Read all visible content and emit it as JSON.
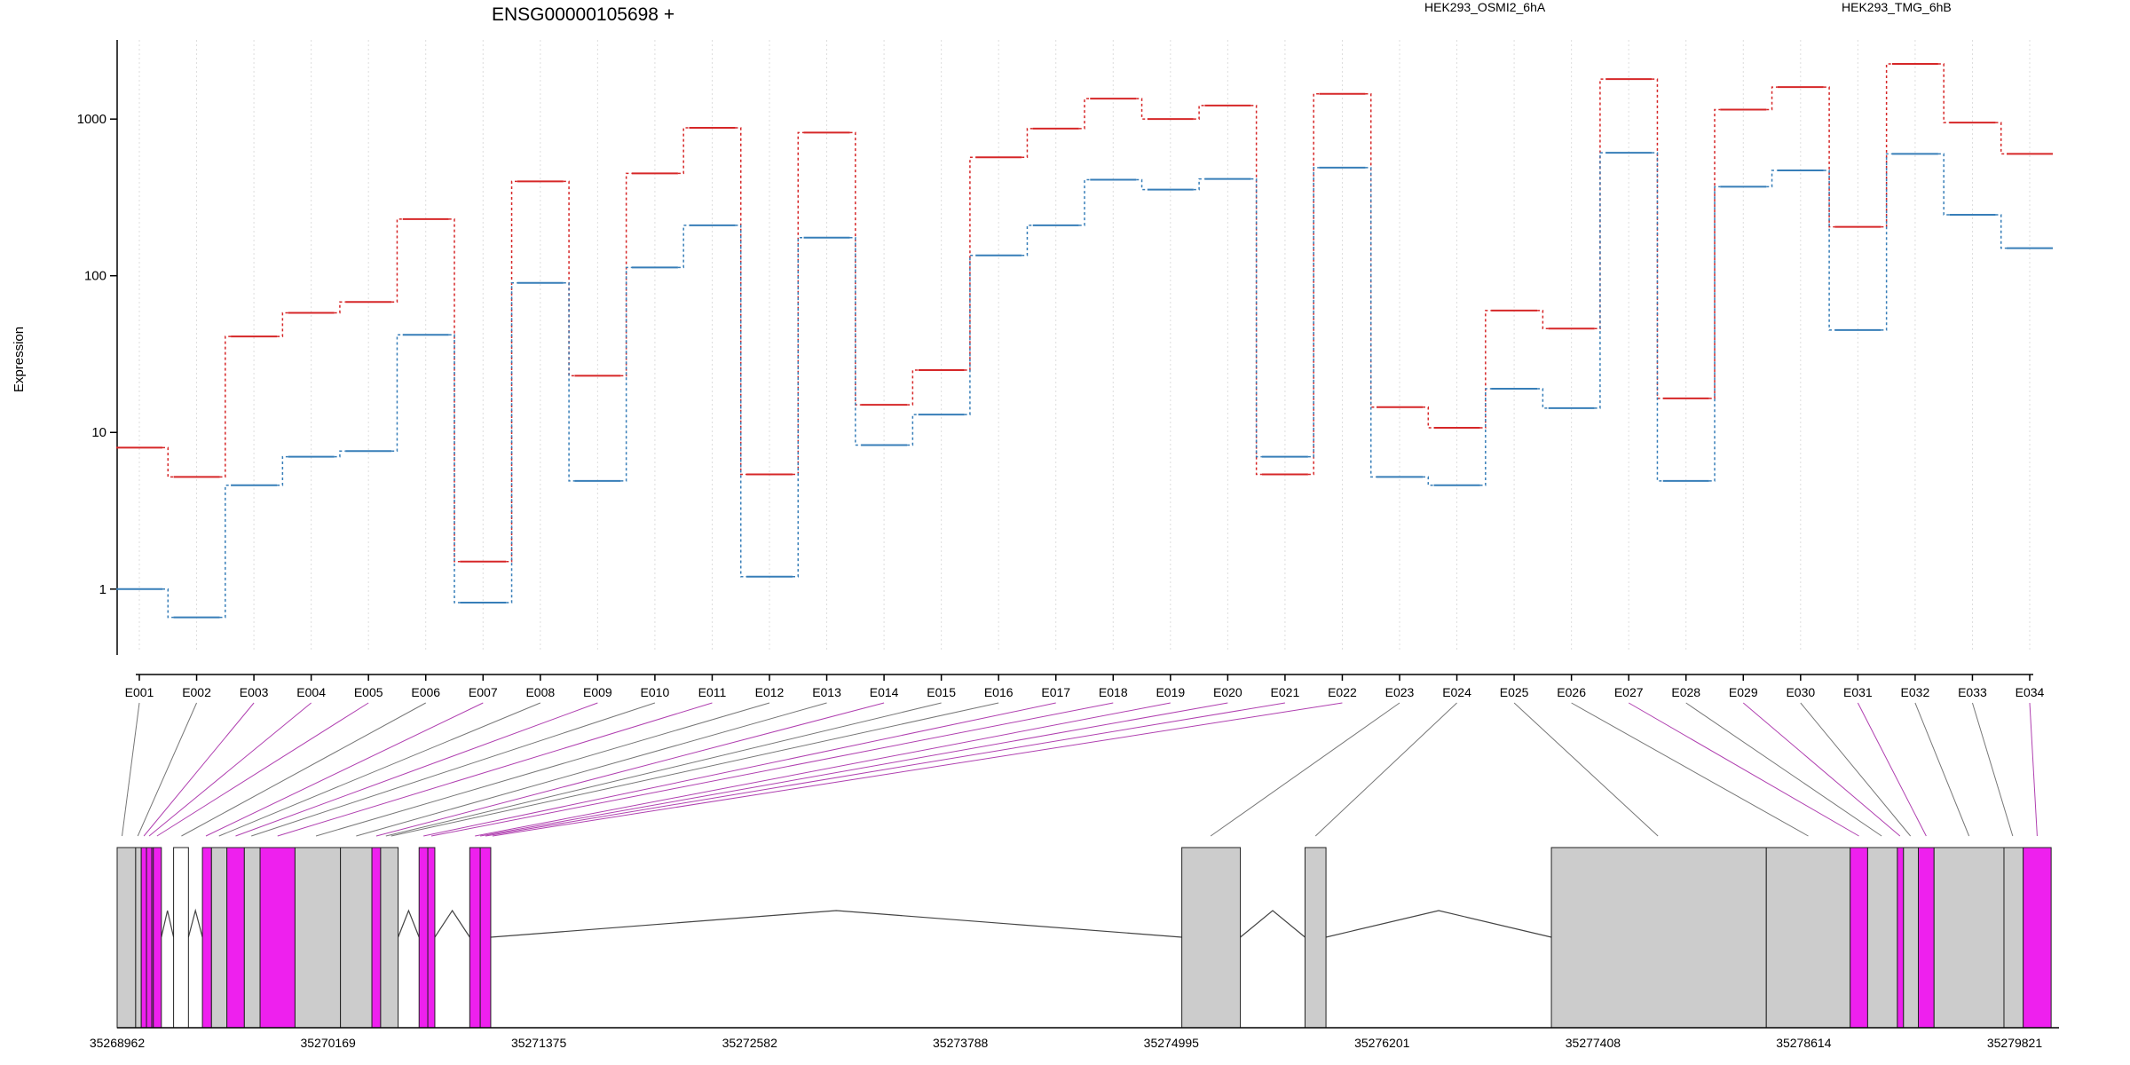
{
  "chart_data": {
    "type": "line",
    "title": "ENSG00000105698 +",
    "ylabel": "Expression",
    "yscale": "log",
    "ylim": [
      0.45,
      3200
    ],
    "yticks": [
      1,
      10,
      100,
      1000
    ],
    "ytick_labels": [
      "1",
      "10",
      "100",
      "1000"
    ],
    "grid": "vertical dotted lines at exon positions",
    "legend_placement": "top",
    "categories": [
      "E001",
      "E002",
      "E003",
      "E004",
      "E005",
      "E006",
      "E007",
      "E008",
      "E009",
      "E010",
      "E011",
      "E012",
      "E013",
      "E014",
      "E015",
      "E016",
      "E017",
      "E018",
      "E019",
      "E020",
      "E021",
      "E022",
      "E023",
      "E024",
      "E025",
      "E026",
      "E027",
      "E028",
      "E029",
      "E030",
      "E031",
      "E032",
      "E033",
      "E034"
    ],
    "series": [
      {
        "name": "HEK293_OSMI2_6hA",
        "color": "#d62728",
        "values": [
          8.0,
          5.2,
          41,
          58,
          68,
          230,
          1.5,
          400,
          23,
          450,
          880,
          5.4,
          820,
          15,
          25,
          570,
          870,
          1350,
          1000,
          1220,
          5.4,
          1450,
          14.5,
          10.7,
          60,
          46,
          1800,
          16.5,
          1150,
          1600,
          205,
          2250,
          950,
          600
        ]
      },
      {
        "name": "HEK293_TMG_6hB",
        "color": "#377eb8",
        "values": [
          1.0,
          0.66,
          4.6,
          7.0,
          7.6,
          42,
          0.82,
          90,
          4.9,
          113,
          210,
          1.2,
          175,
          8.3,
          13,
          135,
          210,
          410,
          355,
          415,
          7.0,
          490,
          5.2,
          4.6,
          19,
          14.3,
          610,
          4.9,
          370,
          470,
          45,
          600,
          245,
          150
        ]
      }
    ],
    "gene_model": {
      "coordinate_ticks": [
        "35268962",
        "35270169",
        "35271375",
        "35272582",
        "35273788",
        "35274995",
        "35276201",
        "35277408",
        "35278614",
        "35279821"
      ],
      "genomic_range": [
        35268962,
        35279821
      ],
      "exon_colors": {
        "grey": "#cccccc",
        "magenta": "#ee20ee",
        "white": "#ffffff"
      },
      "exons": [
        {
          "start": 35268962,
          "end": 35269068,
          "fill": "grey"
        },
        {
          "start": 35269068,
          "end": 35269100,
          "fill": "grey"
        },
        {
          "start": 35269100,
          "end": 35269130,
          "fill": "magenta"
        },
        {
          "start": 35269130,
          "end": 35269160,
          "fill": "magenta"
        },
        {
          "start": 35269160,
          "end": 35269169,
          "fill": "magenta"
        },
        {
          "start": 35269169,
          "end": 35269215,
          "fill": "magenta"
        },
        {
          "start": 35269285,
          "end": 35269370,
          "fill": "white"
        },
        {
          "start": 35269450,
          "end": 35269502,
          "fill": "magenta"
        },
        {
          "start": 35269502,
          "end": 35269590,
          "fill": "grey"
        },
        {
          "start": 35269590,
          "end": 35269690,
          "fill": "magenta"
        },
        {
          "start": 35269690,
          "end": 35269780,
          "fill": "grey"
        },
        {
          "start": 35269780,
          "end": 35269980,
          "fill": "magenta"
        },
        {
          "start": 35269980,
          "end": 35270240,
          "fill": "grey"
        },
        {
          "start": 35270240,
          "end": 35270420,
          "fill": "grey"
        },
        {
          "start": 35270420,
          "end": 35270470,
          "fill": "magenta"
        },
        {
          "start": 35270470,
          "end": 35270570,
          "fill": "grey"
        },
        {
          "start": 35270690,
          "end": 35270740,
          "fill": "magenta"
        },
        {
          "start": 35270740,
          "end": 35270780,
          "fill": "magenta"
        },
        {
          "start": 35270980,
          "end": 35271040,
          "fill": "magenta"
        },
        {
          "start": 35271040,
          "end": 35271100,
          "fill": "magenta"
        },
        {
          "start": 35275055,
          "end": 35275390,
          "fill": "grey"
        },
        {
          "start": 35275760,
          "end": 35275880,
          "fill": "grey"
        },
        {
          "start": 35277170,
          "end": 35278400,
          "fill": "grey"
        },
        {
          "start": 35278400,
          "end": 35278880,
          "fill": "grey"
        },
        {
          "start": 35278880,
          "end": 35278980,
          "fill": "magenta"
        },
        {
          "start": 35278980,
          "end": 35279150,
          "fill": "grey"
        },
        {
          "start": 35279150,
          "end": 35279185,
          "fill": "magenta"
        },
        {
          "start": 35279185,
          "end": 35279270,
          "fill": "grey"
        },
        {
          "start": 35279270,
          "end": 35279360,
          "fill": "magenta"
        },
        {
          "start": 35279360,
          "end": 35279760,
          "fill": "grey"
        },
        {
          "start": 35279760,
          "end": 35279870,
          "fill": "grey"
        },
        {
          "start": 35279870,
          "end": 35280030,
          "fill": "magenta"
        }
      ],
      "introns": [
        [
          35269215,
          35269285
        ],
        [
          35269370,
          35269450
        ],
        [
          35270570,
          35270690
        ],
        [
          35270780,
          35270980
        ],
        [
          35271100,
          35275055
        ],
        [
          35275390,
          35275760
        ],
        [
          35275880,
          35277170
        ]
      ],
      "exon_links": [
        {
          "exon": "E001",
          "pos": 35268990,
          "color": "grey"
        },
        {
          "exon": "E002",
          "pos": 35269080,
          "color": "grey"
        },
        {
          "exon": "E003",
          "pos": 35269115,
          "color": "magenta"
        },
        {
          "exon": "E004",
          "pos": 35269145,
          "color": "magenta"
        },
        {
          "exon": "E005",
          "pos": 35269190,
          "color": "magenta"
        },
        {
          "exon": "E006",
          "pos": 35269330,
          "color": "grey"
        },
        {
          "exon": "E007",
          "pos": 35269470,
          "color": "magenta"
        },
        {
          "exon": "E008",
          "pos": 35269545,
          "color": "grey"
        },
        {
          "exon": "E009",
          "pos": 35269640,
          "color": "magenta"
        },
        {
          "exon": "E010",
          "pos": 35269730,
          "color": "grey"
        },
        {
          "exon": "E011",
          "pos": 35269880,
          "color": "magenta"
        },
        {
          "exon": "E012",
          "pos": 35270100,
          "color": "grey"
        },
        {
          "exon": "E013",
          "pos": 35270330,
          "color": "grey"
        },
        {
          "exon": "E014",
          "pos": 35270445,
          "color": "magenta"
        },
        {
          "exon": "E015",
          "pos": 35270500,
          "color": "grey"
        },
        {
          "exon": "E016",
          "pos": 35270530,
          "color": "grey"
        },
        {
          "exon": "E017",
          "pos": 35270715,
          "color": "magenta"
        },
        {
          "exon": "E018",
          "pos": 35270760,
          "color": "magenta"
        },
        {
          "exon": "E019",
          "pos": 35271010,
          "color": "magenta"
        },
        {
          "exon": "E020",
          "pos": 35271040,
          "color": "magenta"
        },
        {
          "exon": "E021",
          "pos": 35271070,
          "color": "magenta"
        },
        {
          "exon": "E022",
          "pos": 35271110,
          "color": "magenta"
        },
        {
          "exon": "E023",
          "pos": 35275220,
          "color": "grey"
        },
        {
          "exon": "E024",
          "pos": 35275820,
          "color": "grey"
        },
        {
          "exon": "E025",
          "pos": 35277780,
          "color": "grey"
        },
        {
          "exon": "E026",
          "pos": 35278640,
          "color": "grey"
        },
        {
          "exon": "E027",
          "pos": 35278930,
          "color": "magenta"
        },
        {
          "exon": "E028",
          "pos": 35279060,
          "color": "grey"
        },
        {
          "exon": "E029",
          "pos": 35279165,
          "color": "magenta"
        },
        {
          "exon": "E030",
          "pos": 35279225,
          "color": "grey"
        },
        {
          "exon": "E031",
          "pos": 35279315,
          "color": "magenta"
        },
        {
          "exon": "E032",
          "pos": 35279560,
          "color": "grey"
        },
        {
          "exon": "E033",
          "pos": 35279810,
          "color": "grey"
        },
        {
          "exon": "E034",
          "pos": 35279950,
          "color": "magenta"
        }
      ]
    }
  }
}
